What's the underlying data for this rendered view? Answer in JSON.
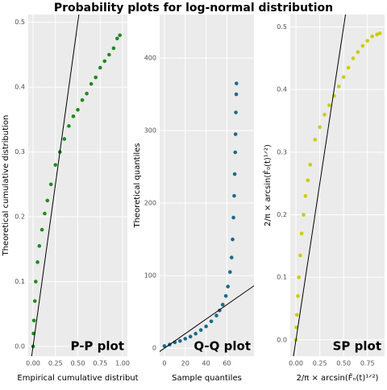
{
  "title": "Probability plots for log-normal distribution",
  "chart_data": [
    {
      "type": "scatter",
      "annotation": "P-P plot",
      "x_label": "Empirical cumulative distribut",
      "y_label": "Theoretical cumulative distribution",
      "color": "#1e8c1e",
      "x": [
        0.0,
        0.005,
        0.01,
        0.02,
        0.03,
        0.05,
        0.07,
        0.1,
        0.13,
        0.16,
        0.2,
        0.25,
        0.3,
        0.35,
        0.4,
        0.45,
        0.5,
        0.55,
        0.6,
        0.65,
        0.7,
        0.75,
        0.8,
        0.85,
        0.9,
        0.94,
        0.97
      ],
      "y": [
        0.0,
        0.02,
        0.04,
        0.07,
        0.1,
        0.13,
        0.155,
        0.18,
        0.205,
        0.225,
        0.25,
        0.28,
        0.3,
        0.32,
        0.34,
        0.355,
        0.365,
        0.38,
        0.39,
        0.405,
        0.415,
        0.43,
        0.44,
        0.45,
        0.46,
        0.475,
        0.48
      ],
      "xlim": [
        -0.054,
        1.054
      ],
      "ylim": [
        -0.015,
        0.512
      ],
      "xticks": [
        {
          "value": 0,
          "label": "0.00"
        },
        0.25,
        {
          "value": 0.5,
          "label": "0.50"
        },
        0.75,
        {
          "value": 1,
          "label": "1.00"
        }
      ],
      "yticks": [
        {
          "value": 0,
          "label": "0.0"
        },
        0.1,
        0.2,
        0.3,
        0.4,
        0.5
      ],
      "grid": true
    },
    {
      "type": "scatter",
      "annotation": "Q-Q plot",
      "x_label": "Sample quantiles",
      "y_label": "Theoretical quantiles",
      "color": "#1b6a8c",
      "x": [
        0,
        5,
        10,
        15,
        20,
        25,
        30,
        35,
        40,
        45,
        50,
        53,
        56,
        59,
        61,
        63,
        64.5,
        65.5,
        66.3,
        67,
        67.5,
        68,
        68.3,
        68.6,
        69,
        69.2
      ],
      "y": [
        3,
        5,
        8,
        10,
        13,
        16,
        20,
        25,
        30,
        37,
        45,
        52,
        60,
        72,
        85,
        105,
        125,
        150,
        180,
        210,
        240,
        270,
        295,
        325,
        350,
        365
      ],
      "xlim": [
        -4.6,
        86
      ],
      "ylim": [
        -11,
        460
      ],
      "xticks": [
        0,
        20,
        40,
        60
      ],
      "yticks": [
        0,
        100,
        200,
        300,
        400
      ],
      "grid": true
    },
    {
      "type": "scatter",
      "annotation": "SP plot",
      "x_label": "2/π × arcsin(F̂ₙ(t)¹ᐟ²)",
      "y_label": "2/π × arcsin(F̂₀(t)¹ᐟ²)",
      "color": "#cccc00",
      "x": [
        0.0,
        0.005,
        0.01,
        0.02,
        0.03,
        0.045,
        0.06,
        0.08,
        0.1,
        0.125,
        0.15,
        0.2,
        0.25,
        0.3,
        0.35,
        0.4,
        0.45,
        0.5,
        0.55,
        0.6,
        0.65,
        0.7,
        0.75,
        0.8,
        0.85,
        0.88
      ],
      "y": [
        0.0,
        0.02,
        0.04,
        0.07,
        0.1,
        0.135,
        0.17,
        0.2,
        0.23,
        0.255,
        0.28,
        0.32,
        0.34,
        0.36,
        0.375,
        0.39,
        0.405,
        0.42,
        0.435,
        0.45,
        0.46,
        0.47,
        0.478,
        0.485,
        0.488,
        0.49
      ],
      "xlim": [
        -0.06,
        0.93
      ],
      "ylim": [
        -0.026,
        0.52
      ],
      "xticks": [
        {
          "value": 0,
          "label": "0.00"
        },
        0.25,
        {
          "value": 0.5,
          "label": "0.50"
        },
        0.75
      ],
      "yticks": [
        {
          "value": 0,
          "label": "0.0"
        },
        0.1,
        0.2,
        0.3,
        0.4,
        0.5
      ],
      "grid": true
    }
  ]
}
